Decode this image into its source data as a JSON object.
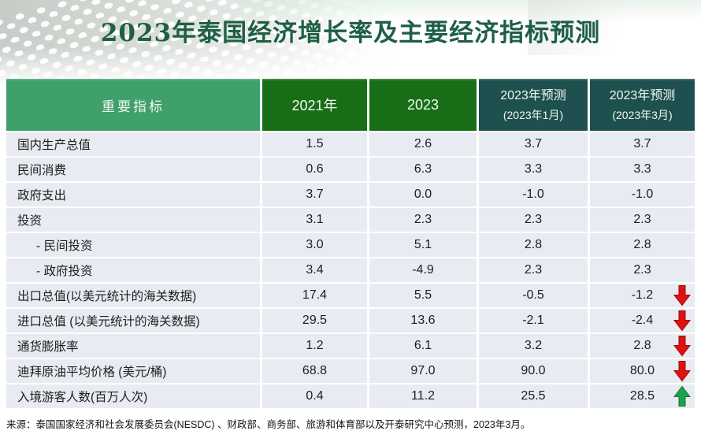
{
  "title": "2023年泰国经济增长率及主要经济指标预测",
  "source": "来源：泰国国家经济和社会发展委员会(NESDC) 、财政部、商务部、旅游和体育部以及开泰研究中心预测，2023年3月。",
  "colors": {
    "header_indicator_bg": "#3fa06c",
    "header_year_bg": "#176e17",
    "header_forecast_bg": "#1d504e",
    "row_bg": "#e8ebf2",
    "title_text": "#1e5f46",
    "down_arrow": "#e01111",
    "up_arrow": "#1ea14d"
  },
  "table": {
    "header": {
      "indicator": "重要指标",
      "col_2021": "2021年",
      "col_2023": "2023",
      "forecast_jan": {
        "line1": "2023年预测",
        "line2": "(2023年1月)"
      },
      "forecast_mar": {
        "line1": "2023年预测",
        "line2": "(2023年3月)"
      }
    },
    "rows": [
      {
        "label": "国内生产总值",
        "indent": false,
        "values": [
          "1.5",
          "2.6",
          "3.7",
          "3.7"
        ],
        "arrow": ""
      },
      {
        "label": "民间消费",
        "indent": false,
        "values": [
          "0.6",
          "6.3",
          "3.3",
          "3.3"
        ],
        "arrow": ""
      },
      {
        "label": "政府支出",
        "indent": false,
        "values": [
          "3.7",
          "0.0",
          "-1.0",
          "-1.0"
        ],
        "arrow": ""
      },
      {
        "label": "投资",
        "indent": false,
        "values": [
          "3.1",
          "2.3",
          "2.3",
          "2.3"
        ],
        "arrow": ""
      },
      {
        "label": "- 民间投资",
        "indent": true,
        "values": [
          "3.0",
          "5.1",
          "2.8",
          "2.8"
        ],
        "arrow": ""
      },
      {
        "label": "- 政府投资",
        "indent": true,
        "values": [
          "3.4",
          "-4.9",
          "2.3",
          "2.3"
        ],
        "arrow": ""
      },
      {
        "label": "出口总值(以美元统计的海关数据)",
        "indent": false,
        "values": [
          "17.4",
          "5.5",
          "-0.5",
          "-1.2"
        ],
        "arrow": "down"
      },
      {
        "label": "进口总值 (以美元统计的海关数据)",
        "indent": false,
        "values": [
          "29.5",
          "13.6",
          "-2.1",
          "-2.4"
        ],
        "arrow": "down"
      },
      {
        "label": "通货膨胀率",
        "indent": false,
        "values": [
          "1.2",
          "6.1",
          "3.2",
          "2.8"
        ],
        "arrow": "down"
      },
      {
        "label": "迪拜原油平均价格 (美元/桶)",
        "indent": false,
        "values": [
          "68.8",
          "97.0",
          "90.0",
          "80.0"
        ],
        "arrow": "down"
      },
      {
        "label": "入境游客人数(百万人次)",
        "indent": false,
        "values": [
          "0.4",
          "11.2",
          "25.5",
          "28.5"
        ],
        "arrow": "up"
      }
    ]
  }
}
